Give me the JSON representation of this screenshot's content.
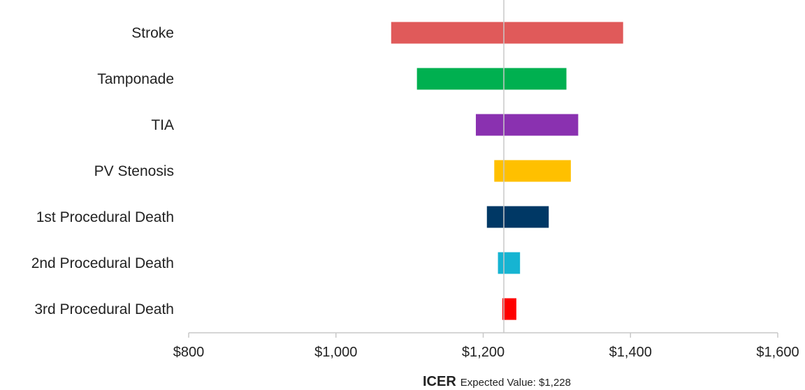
{
  "chart_data": {
    "type": "bar",
    "subtype": "tornado",
    "orientation": "horizontal",
    "categories": [
      "Stroke",
      "Tamponade",
      "TIA",
      "PV Stenosis",
      "1st Procedural Death",
      "2nd Procedural Death",
      "3rd Procedural Death"
    ],
    "series": [
      {
        "low": 1075,
        "high": 1390,
        "color": "#e05a5a"
      },
      {
        "low": 1110,
        "high": 1313,
        "color": "#00b050"
      },
      {
        "low": 1190,
        "high": 1329,
        "color": "#8a31b0"
      },
      {
        "low": 1215,
        "high": 1319,
        "color": "#ffc000"
      },
      {
        "low": 1205,
        "high": 1289,
        "color": "#003865"
      },
      {
        "low": 1220,
        "high": 1250,
        "color": "#16b4d2"
      },
      {
        "low": 1226,
        "high": 1245,
        "color": "#ff0000"
      }
    ],
    "baseline": 1228,
    "xlim": [
      800,
      1600
    ],
    "xticks": [
      800,
      1000,
      1200,
      1400,
      1600
    ],
    "xtick_labels": [
      "$800",
      "$1,000",
      "$1,200",
      "$1,400",
      "$1,600"
    ],
    "xlabel": "ICER",
    "xlabel_note": "Expected Value: $1,228",
    "grid": false,
    "legend": "none"
  }
}
